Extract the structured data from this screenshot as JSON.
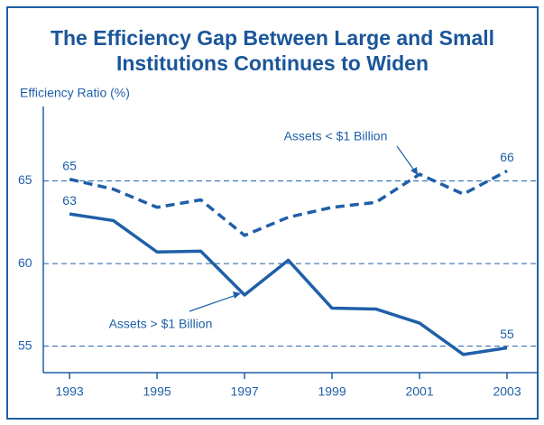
{
  "chart_data": {
    "type": "line",
    "title": [
      "The Efficiency Gap Between Large and Small",
      "Institutions Continues to Widen"
    ],
    "y_label": "Efficiency Ratio (%)",
    "x": [
      1993,
      1994,
      1995,
      1996,
      1997,
      1998,
      1999,
      2000,
      2001,
      2002,
      2003
    ],
    "series": [
      {
        "name": "Assets < $1 Billion",
        "color": "#1f5fa8",
        "line_style": "dashed",
        "values": [
          65.1,
          64.5,
          63.4,
          63.85,
          61.7,
          62.8,
          63.4,
          63.7,
          65.4,
          64.2,
          65.6
        ],
        "value_labels": [
          "65",
          null,
          null,
          null,
          null,
          null,
          null,
          null,
          null,
          null,
          "66"
        ]
      },
      {
        "name": "Assets > $1 Billion",
        "color": "#1f5fa8",
        "line_style": "solid",
        "values": [
          63.0,
          62.6,
          60.7,
          60.75,
          58.1,
          60.2,
          57.3,
          57.25,
          56.4,
          54.5,
          54.9
        ],
        "value_labels": [
          "63",
          null,
          null,
          null,
          null,
          null,
          null,
          null,
          null,
          null,
          "55"
        ]
      }
    ],
    "xlim": [
      1992.4,
      2003.7
    ],
    "xticks": [
      1993,
      1995,
      1997,
      1999,
      2001,
      2003
    ],
    "ylim": [
      53.4,
      69.5
    ],
    "yticks": [
      55,
      60,
      65
    ],
    "grid": true
  }
}
